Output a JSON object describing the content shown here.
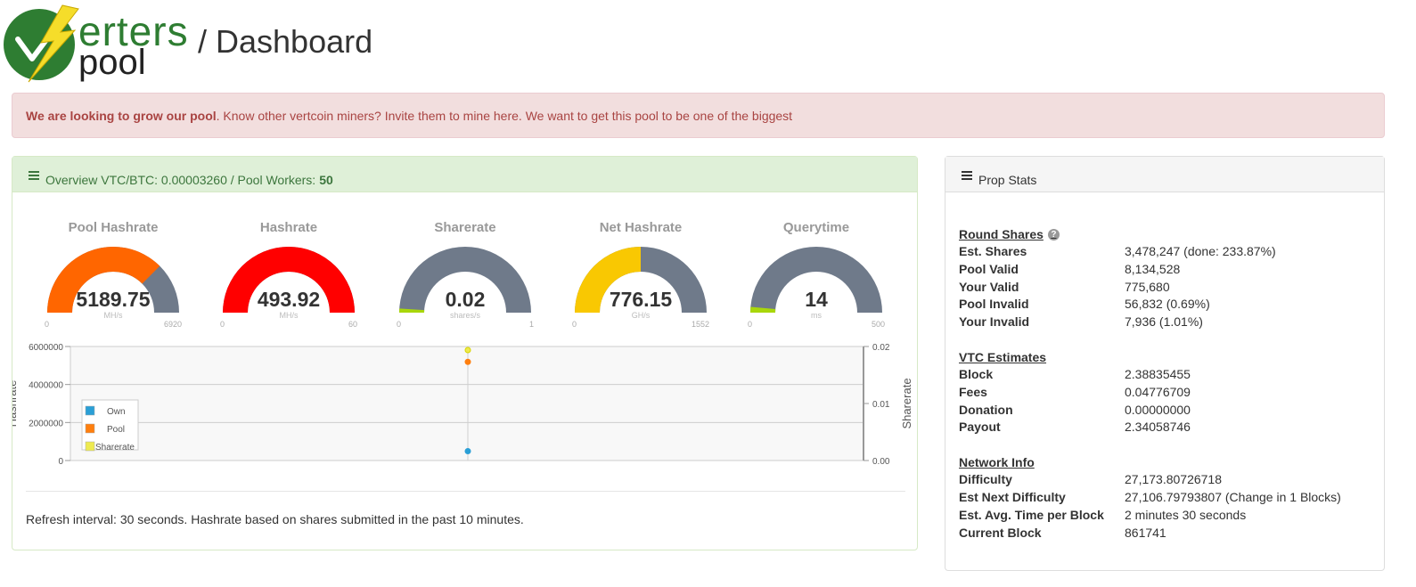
{
  "header": {
    "logo_text_1": "erters",
    "logo_text_2": "pool",
    "title": "/ Dashboard"
  },
  "alert": {
    "bold": "We are looking to grow our pool",
    "text": ". Know other vertcoin miners? Invite them to mine here. We want to get this pool to be one of the biggest"
  },
  "overview": {
    "heading": "Overview VTC/BTC: 0.00003260 / Pool Workers:",
    "workers": "50",
    "gauges": [
      {
        "title": "Pool Hashrate",
        "value": "5189.75",
        "unit": "MH/s",
        "min": "0",
        "max": "6920",
        "fraction": 0.75,
        "color": "#ff6600"
      },
      {
        "title": "Hashrate",
        "value": "493.92",
        "unit": "MH/s",
        "min": "0",
        "max": "60",
        "fraction": 1.0,
        "color": "#ff0000"
      },
      {
        "title": "Sharerate",
        "value": "0.02",
        "unit": "shares/s",
        "min": "0",
        "max": "1",
        "fraction": 0.02,
        "color": "#a9d70b"
      },
      {
        "title": "Net Hashrate",
        "value": "776.15",
        "unit": "GH/s",
        "min": "0",
        "max": "1552",
        "fraction": 0.5,
        "color": "#f9c802"
      },
      {
        "title": "Querytime",
        "value": "14",
        "unit": "ms",
        "min": "0",
        "max": "500",
        "fraction": 0.028,
        "color": "#a9d70b"
      }
    ],
    "refresh": "Refresh interval: 30 seconds. Hashrate based on shares submitted in the past 10 minutes."
  },
  "chart_data": {
    "type": "scatter",
    "ylabel": "Hashrate",
    "y2label": "Sharerate",
    "ylim": [
      0,
      6000000
    ],
    "y2lim": [
      0,
      0.02
    ],
    "yticks": [
      "6000000",
      "4000000",
      "2000000",
      "0"
    ],
    "y2ticks": [
      "0.02",
      "0.01",
      "0.00"
    ],
    "grid": true,
    "legend_position": "bottom-left",
    "legend": [
      "Own",
      "Pool",
      "Sharerate"
    ],
    "series": [
      {
        "name": "Own",
        "color": "#2a9fd6",
        "values": [
          493920
        ]
      },
      {
        "name": "Pool",
        "color": "#ff7f0e",
        "values": [
          5189750
        ]
      },
      {
        "name": "Sharerate",
        "color": "#eeea50",
        "values": [
          0.02
        ]
      }
    ]
  },
  "stats": {
    "heading": "Prop Stats",
    "sections": [
      {
        "title": "Round Shares",
        "info": true,
        "rows": [
          {
            "label": "Est. Shares",
            "value": "3,478,247 (done: 233.87%)"
          },
          {
            "label": "Pool Valid",
            "value": "8,134,528"
          },
          {
            "label": "Your Valid",
            "value": "775,680"
          },
          {
            "label": "Pool Invalid",
            "value": "56,832 (0.69%)"
          },
          {
            "label": "Your Invalid",
            "value": "7,936 (1.01%)"
          }
        ]
      },
      {
        "title": "VTC Estimates",
        "info": false,
        "rows": [
          {
            "label": "Block",
            "value": "2.38835455"
          },
          {
            "label": "Fees",
            "value": "0.04776709"
          },
          {
            "label": "Donation",
            "value": "0.00000000"
          },
          {
            "label": "Payout",
            "value": "2.34058746"
          }
        ]
      },
      {
        "title": "Network Info",
        "info": false,
        "rows": [
          {
            "label": "Difficulty",
            "value": "27,173.80726718"
          },
          {
            "label": "Est Next Difficulty",
            "value": "27,106.79793807 (Change in 1 Blocks)"
          },
          {
            "label": "Est. Avg. Time per Block",
            "value": "2 minutes 30 seconds"
          },
          {
            "label": "Current Block",
            "value": "861741"
          }
        ]
      }
    ]
  }
}
